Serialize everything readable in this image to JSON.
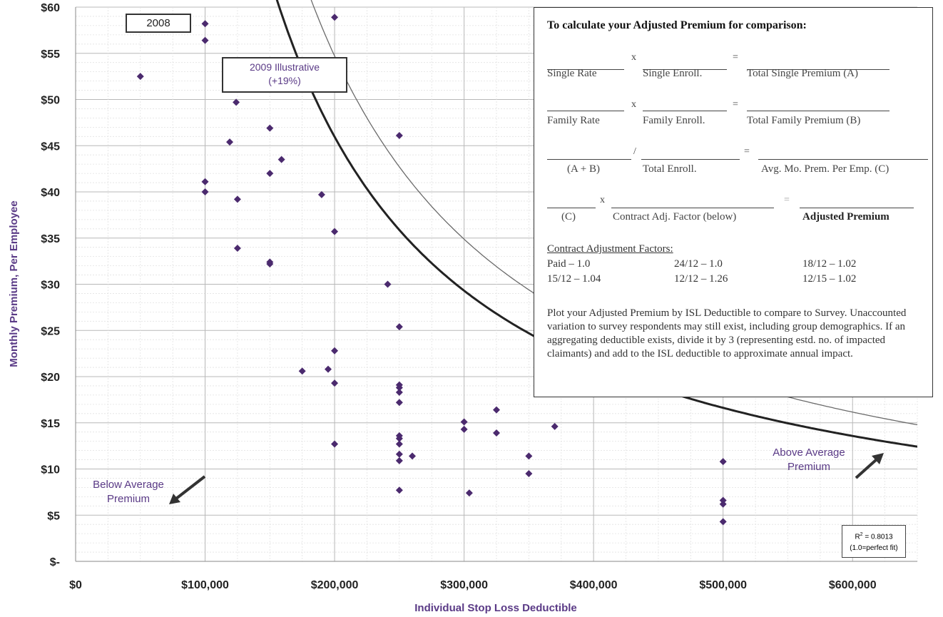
{
  "chart_data": {
    "type": "scatter",
    "xlabel": "Individual Stop Loss Deductible",
    "ylabel": "Monthly Premium, Per Employee",
    "xlim": [
      0,
      650000
    ],
    "ylim": [
      0,
      60
    ],
    "x_ticks": [
      0,
      100000,
      200000,
      300000,
      400000,
      500000,
      600000
    ],
    "x_tick_labels": [
      "$0",
      "$100,000",
      "$200,000",
      "$300,000",
      "$400,000",
      "$500,000",
      "$600,000"
    ],
    "y_ticks": [
      0,
      5,
      10,
      15,
      20,
      25,
      30,
      35,
      40,
      45,
      50,
      55,
      60
    ],
    "y_tick_labels": [
      "$-",
      "$5",
      "$10",
      "$15",
      "$20",
      "$25",
      "$30",
      "$35",
      "$40",
      "$45",
      "$50",
      "$55",
      "$60"
    ],
    "grid": true,
    "points": [
      {
        "x": 50000,
        "y": 52.5
      },
      {
        "x": 100000,
        "y": 58.2
      },
      {
        "x": 100000,
        "y": 56.4
      },
      {
        "x": 100000,
        "y": 41.1
      },
      {
        "x": 100000,
        "y": 40.0
      },
      {
        "x": 119000,
        "y": 45.4
      },
      {
        "x": 124000,
        "y": 49.7
      },
      {
        "x": 125000,
        "y": 39.2
      },
      {
        "x": 125000,
        "y": 33.9
      },
      {
        "x": 150000,
        "y": 46.9
      },
      {
        "x": 150000,
        "y": 42.0
      },
      {
        "x": 150000,
        "y": 32.2
      },
      {
        "x": 150000,
        "y": 32.4
      },
      {
        "x": 159000,
        "y": 43.5
      },
      {
        "x": 175000,
        "y": 20.6
      },
      {
        "x": 190000,
        "y": 39.7
      },
      {
        "x": 195000,
        "y": 20.8
      },
      {
        "x": 200000,
        "y": 58.9
      },
      {
        "x": 200000,
        "y": 35.7
      },
      {
        "x": 200000,
        "y": 22.8
      },
      {
        "x": 200000,
        "y": 19.3
      },
      {
        "x": 200000,
        "y": 12.7
      },
      {
        "x": 241000,
        "y": 30.0
      },
      {
        "x": 250000,
        "y": 46.1
      },
      {
        "x": 250000,
        "y": 25.4
      },
      {
        "x": 250000,
        "y": 19.1
      },
      {
        "x": 250000,
        "y": 18.8
      },
      {
        "x": 250000,
        "y": 18.3
      },
      {
        "x": 250000,
        "y": 17.2
      },
      {
        "x": 250000,
        "y": 13.6
      },
      {
        "x": 250000,
        "y": 13.3
      },
      {
        "x": 250000,
        "y": 12.7
      },
      {
        "x": 250000,
        "y": 11.6
      },
      {
        "x": 250000,
        "y": 10.9
      },
      {
        "x": 250000,
        "y": 7.7
      },
      {
        "x": 260000,
        "y": 11.4
      },
      {
        "x": 300000,
        "y": 15.1
      },
      {
        "x": 300000,
        "y": 14.3
      },
      {
        "x": 304000,
        "y": 7.4
      },
      {
        "x": 325000,
        "y": 16.4
      },
      {
        "x": 325000,
        "y": 13.9
      },
      {
        "x": 350000,
        "y": 11.4
      },
      {
        "x": 350000,
        "y": 9.5
      },
      {
        "x": 370000,
        "y": 14.6
      },
      {
        "x": 500000,
        "y": 10.8
      },
      {
        "x": 500000,
        "y": 6.6
      },
      {
        "x": 500000,
        "y": 6.2
      },
      {
        "x": 500000,
        "y": 4.3
      }
    ],
    "curves": [
      {
        "name": "2008",
        "k": 35200000.0,
        "p": 1.11,
        "stroke": "#222222",
        "width": 3
      },
      {
        "name": "2009 Illustrative (+19%)",
        "k": 41900000.0,
        "p": 1.11,
        "stroke": "#6a6a6a",
        "width": 1.3
      }
    ],
    "point_color": "#4b2a6e",
    "curve_labels": {
      "c2008": "2008",
      "c2009_line1": "2009 Illustrative",
      "c2009_line2": "(+19%)"
    },
    "r2": {
      "label": "R",
      "sup": "2",
      "value": " = 0.8013",
      "note": "(1.0=perfect fit)"
    },
    "annotations": {
      "below_line1": "Below Average",
      "below_line2": "Premium",
      "above_line1": "Above  Average",
      "above_line2": "Premium"
    }
  },
  "calc": {
    "title": "To calculate your Adjusted Premium for comparison:",
    "row1": {
      "a": "Single Rate",
      "op": "x",
      "b": "Single Enroll.",
      "eq": "=",
      "c": "Total Single Premium (A)"
    },
    "row2": {
      "a": "Family Rate",
      "op": "x",
      "b": "Family Enroll.",
      "eq": "=",
      "c": "Total Family Premium (B)"
    },
    "row3": {
      "a": "(A + B)",
      "op": "/",
      "b": "Total Enroll.",
      "eq": "=",
      "c": "Avg. Mo. Prem. Per Emp. (C)"
    },
    "row4": {
      "a": "(C)",
      "op": "x",
      "b": "Contract Adj. Factor (below)",
      "eq": "=",
      "c": "Adjusted Premium"
    },
    "caf_title": "Contract Adjustment Factors:",
    "factors": [
      "Paid – 1.0",
      "24/12 – 1.0",
      "18/12 – 1.02",
      "15/12 – 1.04",
      "12/12 – 1.26",
      "12/15 – 1.02"
    ],
    "instructions": "Plot your Adjusted Premium by ISL Deductible to compare to Survey. Unaccounted variation to survey respondents may still exist, including group demographics. If an aggregating deductible exists, divide it by 3 (representing estd. no. of impacted claimants) and add to the ISL deductible to approximate annual impact."
  }
}
